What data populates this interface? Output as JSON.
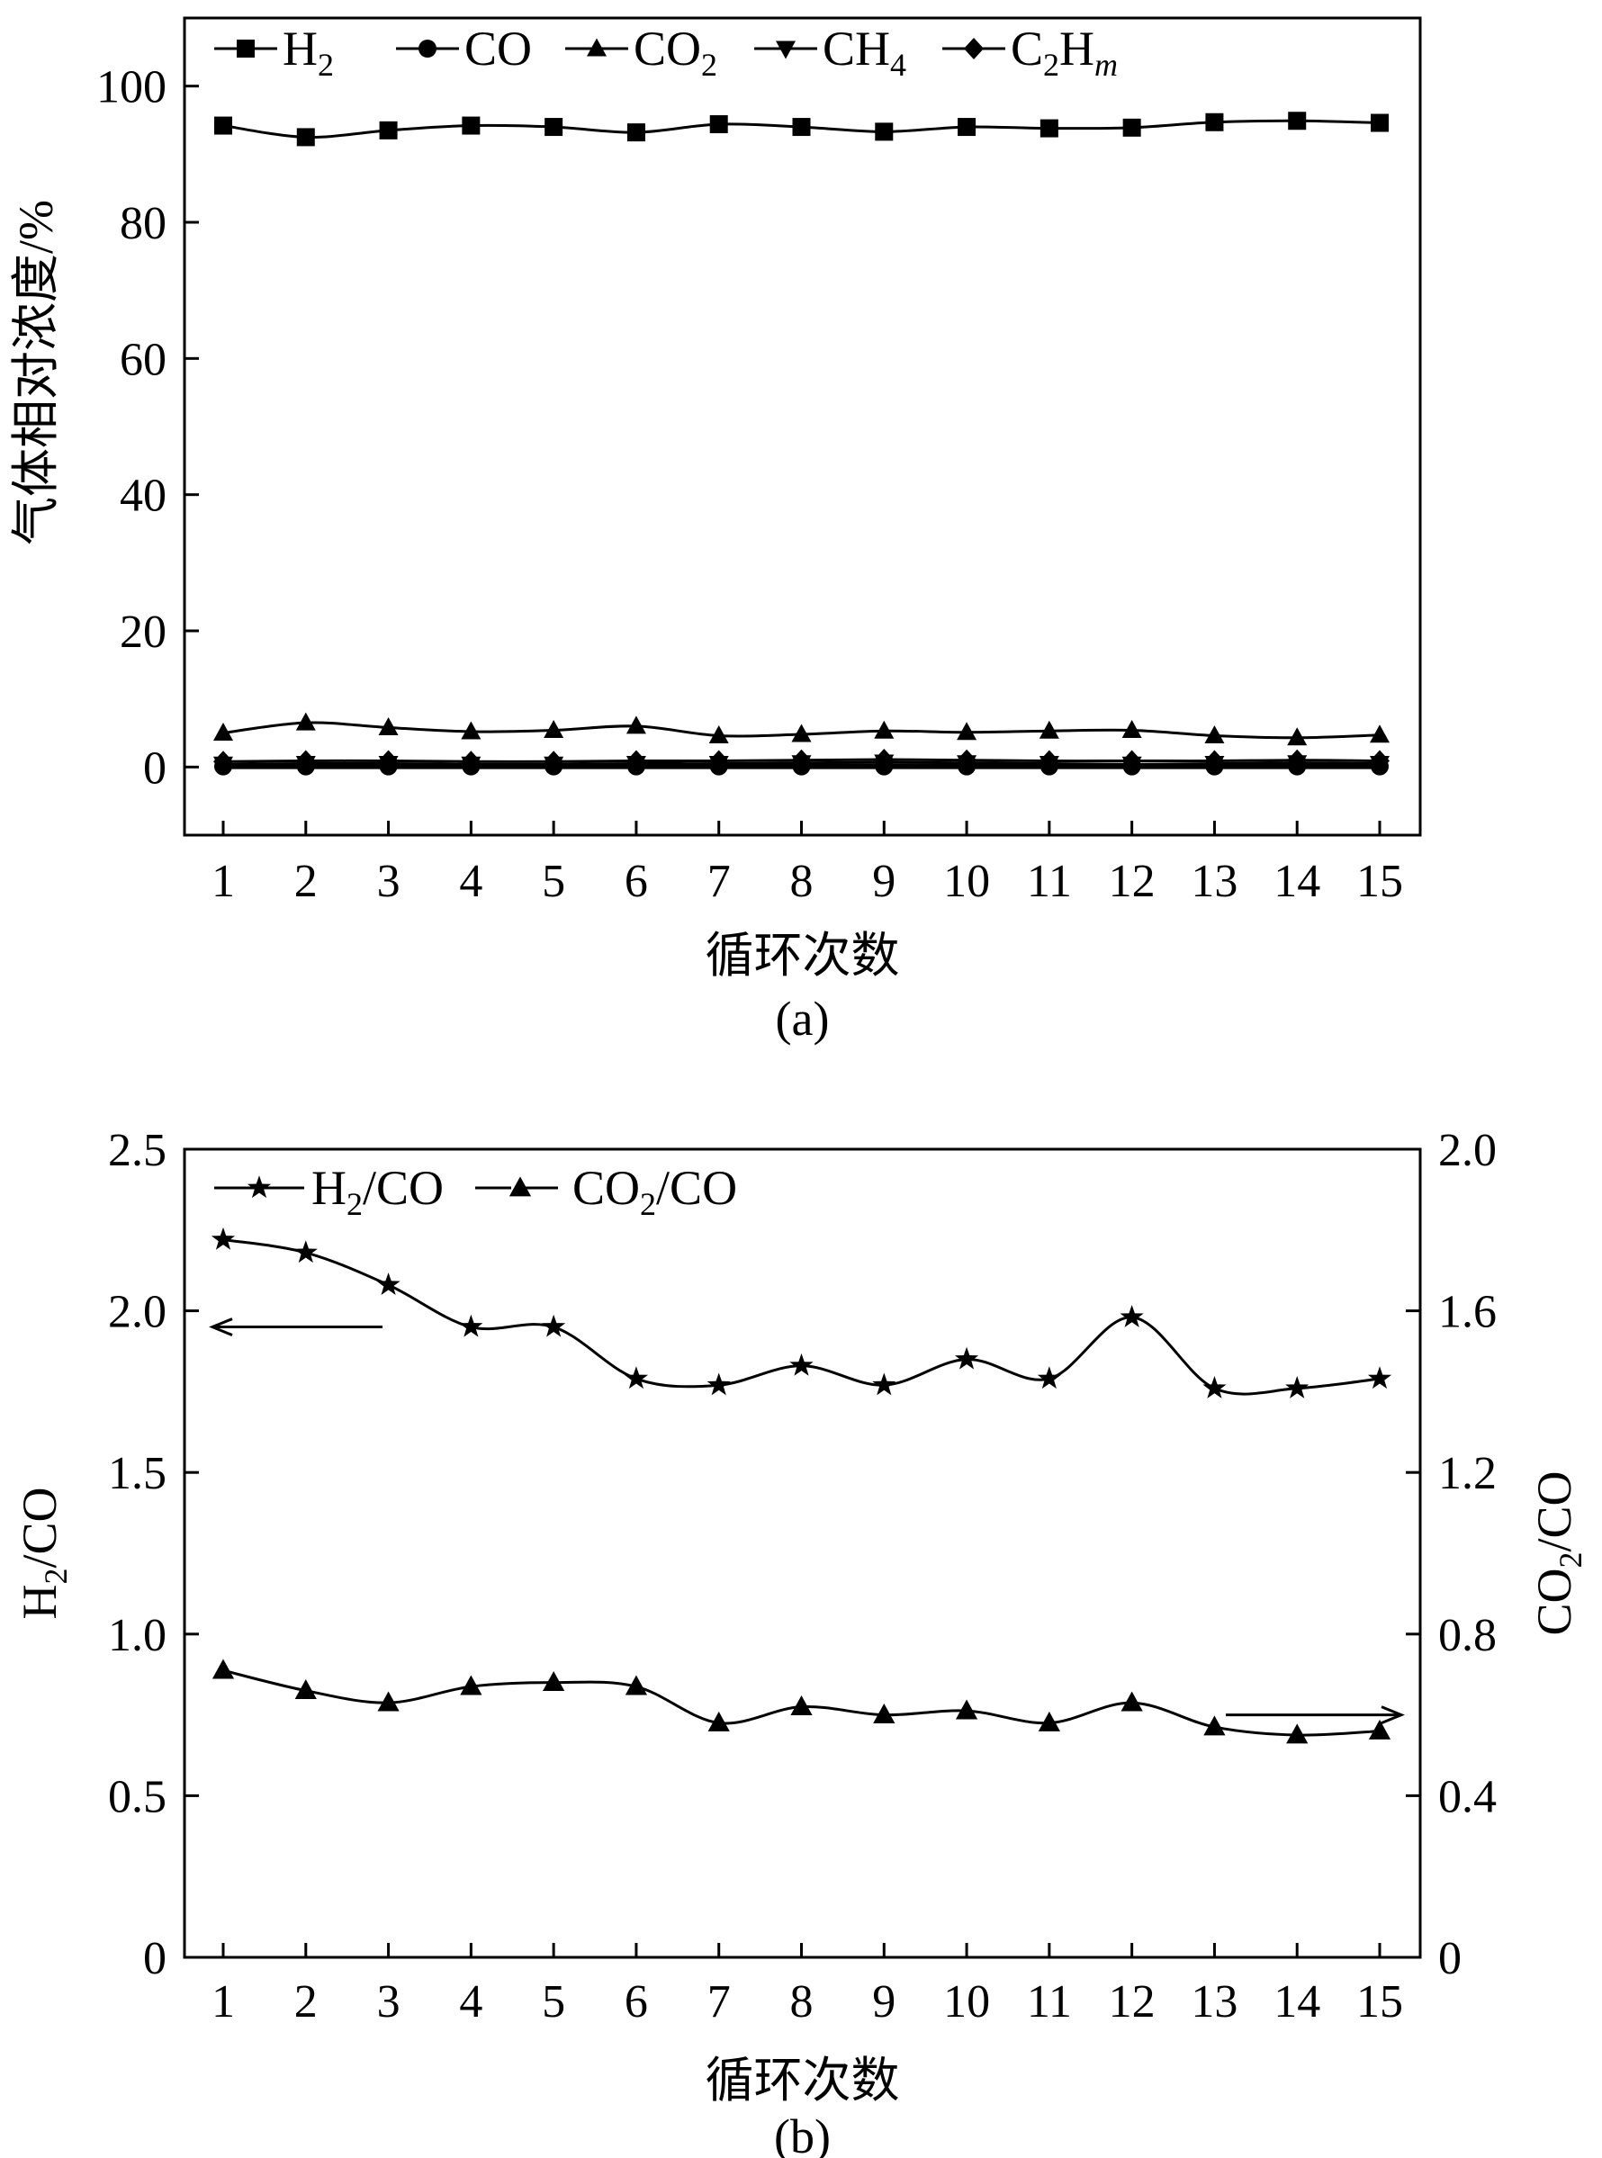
{
  "chart_data": [
    {
      "type": "line",
      "panel_label": "(a)",
      "xlabel": "循环次数",
      "ylabel": "气体相对浓度/%",
      "categories": [
        1,
        2,
        3,
        4,
        5,
        6,
        7,
        8,
        9,
        10,
        11,
        12,
        13,
        14,
        15
      ],
      "ylim": [
        -10,
        110
      ],
      "yticks": [
        0,
        20,
        40,
        60,
        80,
        100
      ],
      "legend_position": "top-left",
      "series": [
        {
          "name": "H2",
          "marker": "square",
          "values": [
            94.2,
            92.5,
            93.5,
            94.2,
            94.0,
            93.2,
            94.4,
            94.0,
            93.3,
            94.0,
            93.8,
            93.9,
            94.7,
            94.9,
            94.6
          ]
        },
        {
          "name": "CO",
          "marker": "circle",
          "values": [
            0.1,
            0.1,
            0.1,
            0.1,
            0.1,
            0.1,
            0.1,
            0.1,
            0.1,
            0.1,
            0.1,
            0.1,
            0.1,
            0.1,
            0.1
          ]
        },
        {
          "name": "CO2",
          "marker": "triangle-up",
          "values": [
            5.0,
            6.5,
            5.8,
            5.2,
            5.4,
            6.0,
            4.6,
            4.8,
            5.3,
            5.1,
            5.3,
            5.4,
            4.6,
            4.3,
            4.7
          ]
        },
        {
          "name": "CH4",
          "marker": "triangle-down",
          "values": [
            0.4,
            0.5,
            0.5,
            0.4,
            0.4,
            0.5,
            0.5,
            0.6,
            0.7,
            0.6,
            0.5,
            0.4,
            0.5,
            0.6,
            0.5
          ]
        },
        {
          "name": "C2Hm",
          "marker": "diamond",
          "values": [
            0.8,
            0.9,
            0.9,
            0.8,
            0.8,
            0.9,
            0.9,
            1.0,
            1.1,
            1.0,
            0.9,
            0.9,
            0.9,
            1.0,
            0.9
          ]
        }
      ]
    },
    {
      "type": "line",
      "panel_label": "(b)",
      "xlabel": "循环次数",
      "ylabel_left": "H2/CO",
      "ylabel_right": "CO2/CO",
      "categories": [
        1,
        2,
        3,
        4,
        5,
        6,
        7,
        8,
        9,
        10,
        11,
        12,
        13,
        14,
        15
      ],
      "ylim_left": [
        0,
        2.5
      ],
      "ylim_right": [
        0,
        2.0
      ],
      "yticks_left": [
        "0",
        "0.5",
        "1.0",
        "1.5",
        "2.0",
        "2.5"
      ],
      "yticks_right": [
        "0",
        "0.4",
        "0.8",
        "1.2",
        "1.6",
        "2.0"
      ],
      "legend_position": "top-left",
      "series": [
        {
          "name": "H2/CO",
          "marker": "star",
          "axis": "left",
          "values": [
            2.22,
            2.18,
            2.08,
            1.95,
            1.95,
            1.79,
            1.77,
            1.83,
            1.77,
            1.85,
            1.79,
            1.98,
            1.76,
            1.76,
            1.79
          ]
        },
        {
          "name": "CO2/CO",
          "marker": "triangle-up",
          "axis": "right",
          "values": [
            0.71,
            0.66,
            0.63,
            0.67,
            0.68,
            0.67,
            0.58,
            0.62,
            0.6,
            0.61,
            0.58,
            0.63,
            0.57,
            0.55,
            0.56
          ]
        }
      ]
    }
  ]
}
